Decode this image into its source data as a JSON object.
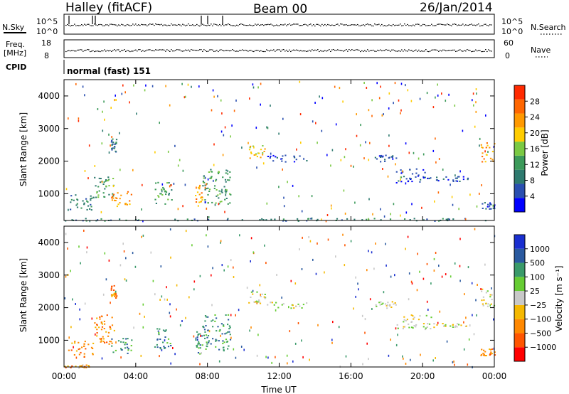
{
  "header": {
    "station": "Halley (fitACF)",
    "beam": "Beam 00",
    "date": "26/Jan/2014"
  },
  "top_panels": {
    "nsky_label": "N.Sky",
    "nsky_ticks": [
      "10^5",
      "10^0"
    ],
    "nsearch_label": "N.Search",
    "nsearch_ticks": [
      "10^5",
      "10^0"
    ],
    "freq_label": "Freq.",
    "freq_unit": "[MHz]",
    "freq_ticks": [
      "18",
      "8"
    ],
    "nave_label": "Nave",
    "nave_ticks": [
      "60",
      "0"
    ],
    "cpid_label": "CPID",
    "cpid_value": "normal (fast) 151"
  },
  "colors": {
    "power_scale": [
      "#0000ff",
      "#2a4fb0",
      "#2e7a6f",
      "#3c9a5a",
      "#7ac943",
      "#ffcc00",
      "#ff9900",
      "#ff6600",
      "#ff2a00"
    ],
    "velocity_scale": [
      "#ff0000",
      "#ff5500",
      "#ff8800",
      "#f5b800",
      "#c8c8c8",
      "#66cc33",
      "#3a9a6a",
      "#2a5aa0",
      "#1a2fd0"
    ]
  },
  "chart_data": [
    {
      "type": "heatmap",
      "name": "power",
      "ylabel": "Slant Range [km]",
      "yticks": [
        "4000",
        "3000",
        "2000",
        "1000"
      ],
      "xticks": [
        "00:00",
        "04:00",
        "08:00",
        "12:00",
        "16:00",
        "20:00",
        "00:00"
      ],
      "colorbar_label": "Power [dB]",
      "colorbar_ticks": [
        "28",
        "24",
        "20",
        "16",
        "12",
        "8",
        "4"
      ],
      "x_range_hours": [
        0,
        24
      ],
      "y_range_km": [
        180,
        4500
      ],
      "bands": [
        {
          "t0": 0.2,
          "t1": 1.6,
          "r0": 500,
          "r1": 1000,
          "level": 2
        },
        {
          "t0": 1.6,
          "t1": 2.8,
          "r0": 900,
          "r1": 1600,
          "level": 3
        },
        {
          "t0": 2.6,
          "t1": 3.8,
          "r0": 600,
          "r1": 1100,
          "level": 6
        },
        {
          "t0": 2.6,
          "t1": 2.9,
          "r0": 2300,
          "r1": 2700,
          "level": 2
        },
        {
          "t0": 5.0,
          "t1": 6.0,
          "r0": 700,
          "r1": 1400,
          "level": 3
        },
        {
          "t0": 7.3,
          "t1": 7.7,
          "r0": 600,
          "r1": 1300,
          "level": 6
        },
        {
          "t0": 7.7,
          "t1": 9.3,
          "r0": 700,
          "r1": 1800,
          "level": 3
        },
        {
          "t0": 10.2,
          "t1": 11.2,
          "r0": 2100,
          "r1": 2500,
          "level": 5
        },
        {
          "t0": 11.2,
          "t1": 13.5,
          "r0": 2000,
          "r1": 2200,
          "level": 1
        },
        {
          "t0": 17.3,
          "t1": 18.5,
          "r0": 2000,
          "r1": 2200,
          "level": 1
        },
        {
          "t0": 18.5,
          "t1": 20.5,
          "r0": 1350,
          "r1": 1800,
          "level": 1
        },
        {
          "t0": 20.5,
          "t1": 22.5,
          "r0": 1400,
          "r1": 1550,
          "level": 1
        },
        {
          "t0": 23.2,
          "t1": 24.0,
          "r0": 2000,
          "r1": 2600,
          "level": 6
        },
        {
          "t0": 23.2,
          "t1": 24.0,
          "r0": 550,
          "r1": 750,
          "level": 1
        },
        {
          "t0": 0.0,
          "t1": 24.0,
          "r0": 180,
          "r1": 260,
          "level": 2
        }
      ]
    },
    {
      "type": "heatmap",
      "name": "velocity",
      "ylabel": "Slant Range [km]",
      "yticks": [
        "4000",
        "3000",
        "2000",
        "1000"
      ],
      "xticks": [
        "00:00",
        "04:00",
        "08:00",
        "12:00",
        "16:00",
        "20:00",
        "00:00"
      ],
      "xlabel": "Time UT",
      "colorbar_label": "Velocity [m s⁻¹]",
      "colorbar_ticks": [
        "1000",
        "500",
        "100",
        "25",
        "−25",
        "−100",
        "−500",
        "−1000"
      ],
      "x_range_hours": [
        0,
        24
      ],
      "y_range_km": [
        180,
        4500
      ],
      "bands": [
        {
          "t0": 0.2,
          "t1": 1.6,
          "r0": 500,
          "r1": 1000,
          "level": 2
        },
        {
          "t0": 1.6,
          "t1": 2.8,
          "r0": 900,
          "r1": 1800,
          "level": 2
        },
        {
          "t0": 2.6,
          "t1": 3.8,
          "r0": 600,
          "r1": 1100,
          "level": 6
        },
        {
          "t0": 2.6,
          "t1": 2.9,
          "r0": 2300,
          "r1": 2700,
          "level": 2
        },
        {
          "t0": 5.0,
          "t1": 6.0,
          "r0": 700,
          "r1": 1400,
          "level": 6
        },
        {
          "t0": 7.3,
          "t1": 7.7,
          "r0": 600,
          "r1": 1300,
          "level": 6
        },
        {
          "t0": 7.7,
          "t1": 9.3,
          "r0": 700,
          "r1": 1800,
          "level": 6
        },
        {
          "t0": 10.2,
          "t1": 11.2,
          "r0": 2100,
          "r1": 2500,
          "level": 4
        },
        {
          "t0": 11.2,
          "t1": 13.5,
          "r0": 2000,
          "r1": 2200,
          "level": 4
        },
        {
          "t0": 17.3,
          "t1": 18.5,
          "r0": 2000,
          "r1": 2200,
          "level": 4
        },
        {
          "t0": 18.5,
          "t1": 20.5,
          "r0": 1350,
          "r1": 1800,
          "level": 4
        },
        {
          "t0": 20.5,
          "t1": 22.5,
          "r0": 1400,
          "r1": 1550,
          "level": 4
        },
        {
          "t0": 23.2,
          "t1": 24.0,
          "r0": 2000,
          "r1": 2600,
          "level": 4
        },
        {
          "t0": 23.2,
          "t1": 24.0,
          "r0": 550,
          "r1": 750,
          "level": 2
        },
        {
          "t0": 0.0,
          "t1": 1.4,
          "r0": 180,
          "r1": 260,
          "level": 2
        }
      ]
    }
  ]
}
